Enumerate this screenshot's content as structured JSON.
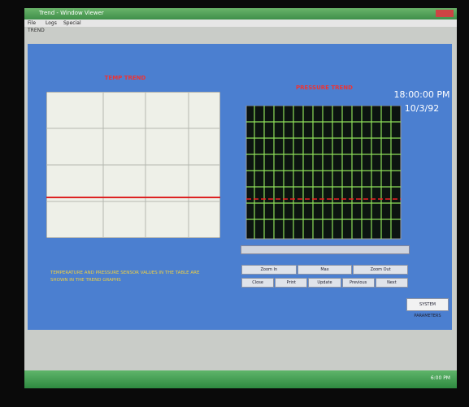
{
  "window": {
    "title": "Trend - Window Viewer",
    "menu": [
      "File",
      "Logs",
      "Special"
    ],
    "breadcrumb": "TREND"
  },
  "left_panel": {
    "title": "TEMP TREND"
  },
  "right_panel": {
    "title": "PRESSURE TREND"
  },
  "clock": {
    "time": "18:00:00 PM",
    "date": "10/3/92"
  },
  "note": "TEMPERATURE AND PRESSURE SENSOR VALUES IN THE TABLE ARE SHOWN IN THE TREND GRAPHS",
  "controls": {
    "row1": [
      "Zoom In",
      "Max",
      "Zoom Out"
    ],
    "row2": [
      "Close",
      "Print",
      "Update",
      "Previous",
      "Next"
    ]
  },
  "button": "SYSTEM PARAMETERS",
  "taskbar": {
    "time": "6:00 PM"
  }
}
